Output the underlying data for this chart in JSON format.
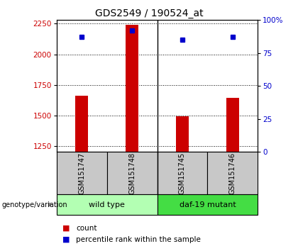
{
  "title": "GDS2549 / 190524_at",
  "samples": [
    "GSM151747",
    "GSM151748",
    "GSM151745",
    "GSM151746"
  ],
  "counts": [
    1660,
    2240,
    1490,
    1640
  ],
  "percentile_ranks": [
    87,
    92,
    85,
    87
  ],
  "ymin": 1200,
  "ymax": 2280,
  "yticks_left": [
    1250,
    1500,
    1750,
    2000,
    2250
  ],
  "yticks_right_vals": [
    0,
    25,
    50,
    75,
    100
  ],
  "yticks_right_labels": [
    "0",
    "25",
    "50",
    "75",
    "100%"
  ],
  "bar_color": "#cc0000",
  "dot_color": "#0000cc",
  "group1_label": "wild type",
  "group2_label": "daf-19 mutant",
  "group1_color": "#b3ffb3",
  "group2_color": "#44dd44",
  "label_color_left": "#cc0000",
  "label_color_right": "#0000cc",
  "tick_area_color": "#c8c8c8",
  "legend_count_label": "count",
  "legend_pct_label": "percentile rank within the sample",
  "genotype_label": "genotype/variation",
  "bar_width": 0.25,
  "dot_size": 5,
  "title_fontsize": 10,
  "tick_fontsize": 7,
  "axis_fontsize": 7.5,
  "legend_fontsize": 7.5,
  "group_fontsize": 8
}
